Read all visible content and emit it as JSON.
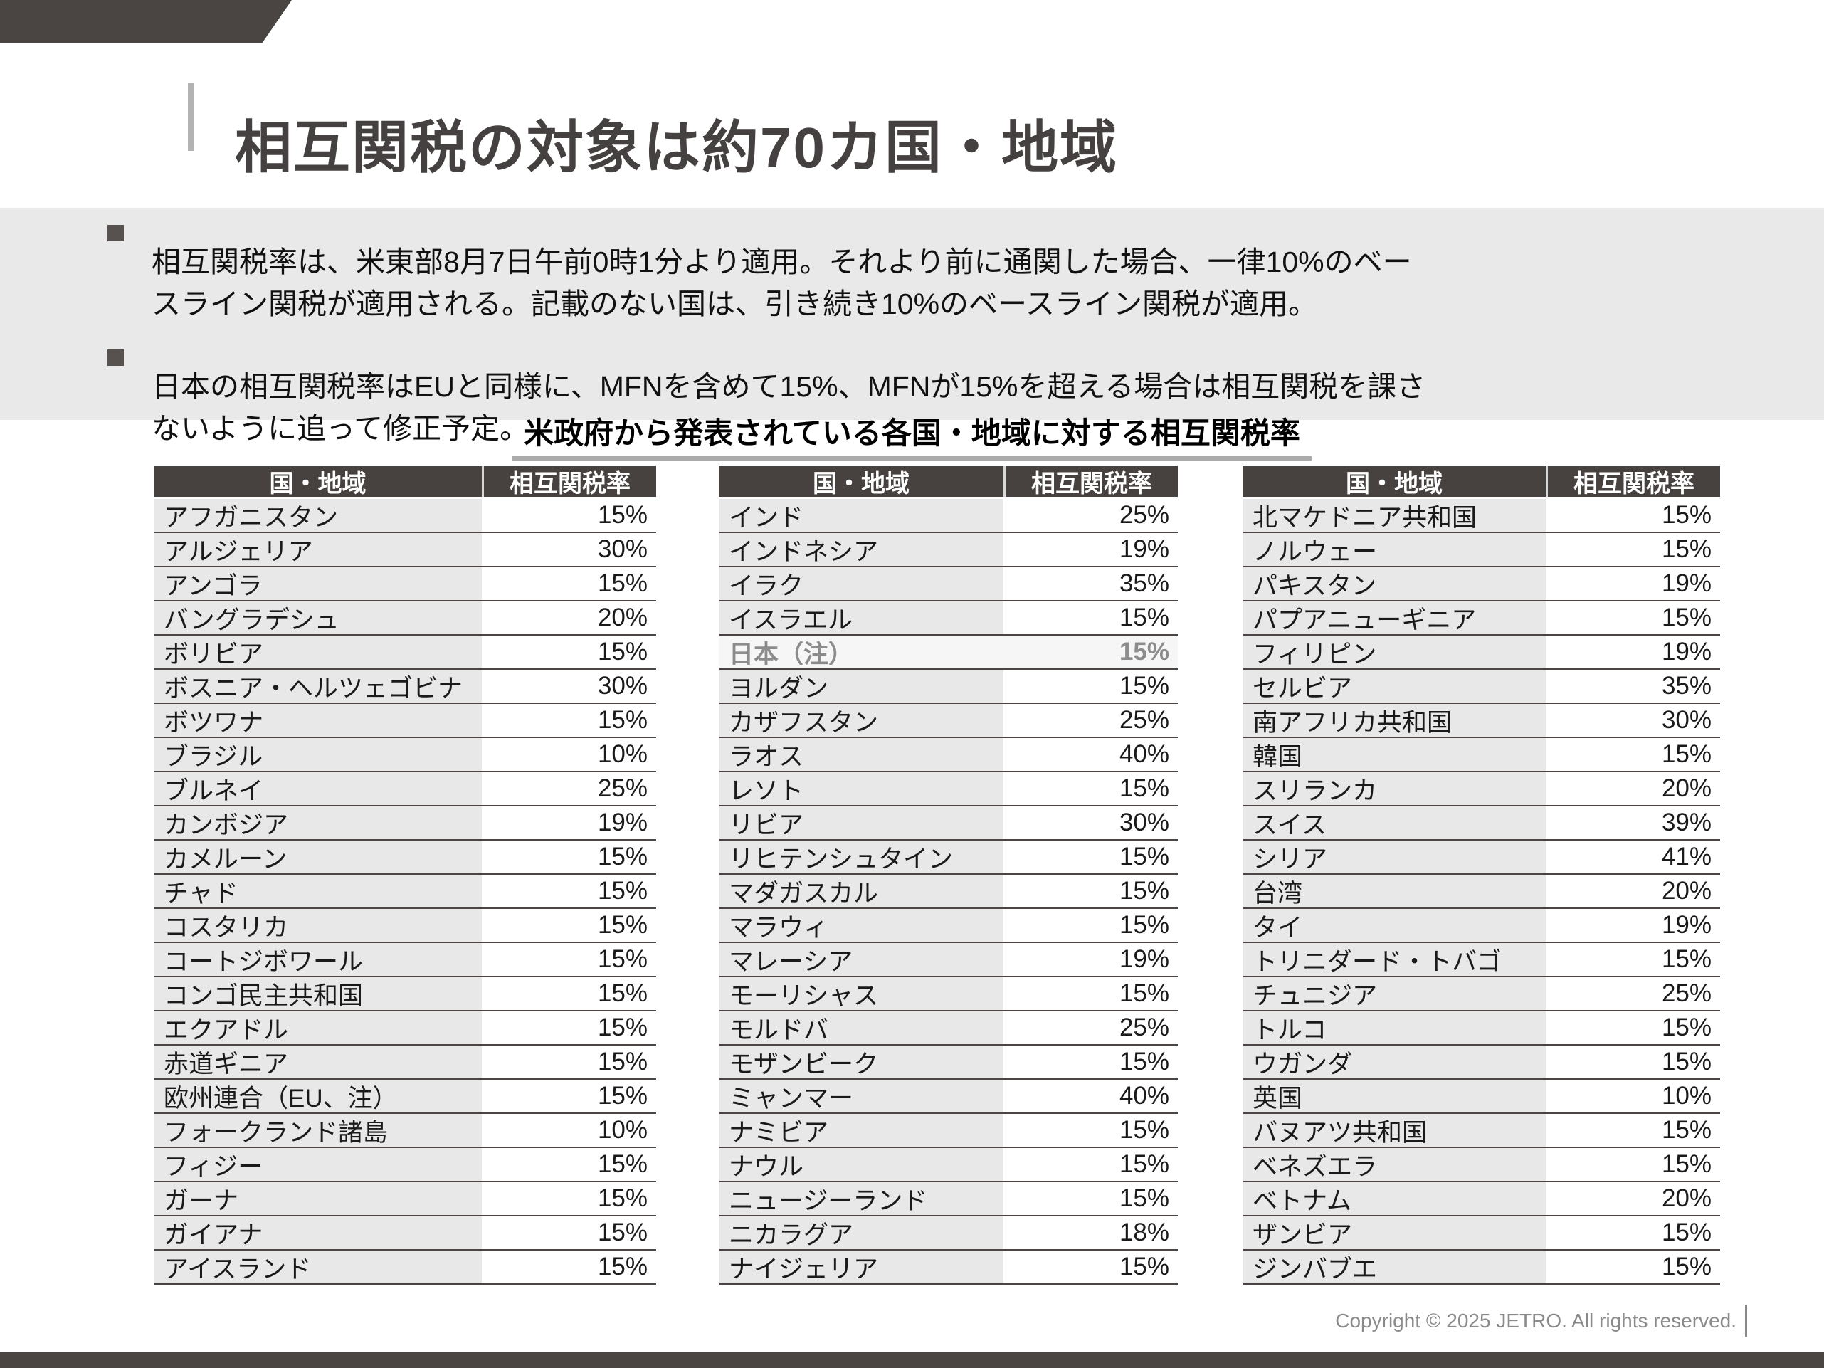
{
  "header": {
    "title": "相互関税の対象は約70カ国・地域"
  },
  "notes": {
    "bullets": [
      {
        "lines": [
          "相互関税率は、米東部8月7日午前0時1分より適用。それより前に通関した場合、一律10%のベー",
          "スライン関税が適用される。記載のない国は、引き続き10%のベースライン関税が適用。"
        ]
      },
      {
        "lines": [
          "日本の相互関税率はEUと同様に、MFNを含めて15%、MFNが15%を超える場合は相互関税を課さ",
          "ないように追って修正予定。"
        ]
      }
    ]
  },
  "table_section": {
    "title": "米政府から発表されている各国・地域に対する相互関税率",
    "column_headers": {
      "country": "国・地域",
      "rate": "相互関税率"
    },
    "tables": [
      {
        "rows": [
          {
            "country": "アフガニスタン",
            "rate": "15%"
          },
          {
            "country": "アルジェリア",
            "rate": "30%"
          },
          {
            "country": "アンゴラ",
            "rate": "15%"
          },
          {
            "country": "バングラデシュ",
            "rate": "20%"
          },
          {
            "country": "ボリビア",
            "rate": "15%"
          },
          {
            "country": "ボスニア・ヘルツェゴビナ",
            "rate": "30%"
          },
          {
            "country": "ボツワナ",
            "rate": "15%"
          },
          {
            "country": "ブラジル",
            "rate": "10%"
          },
          {
            "country": "ブルネイ",
            "rate": "25%"
          },
          {
            "country": "カンボジア",
            "rate": "19%"
          },
          {
            "country": "カメルーン",
            "rate": "15%"
          },
          {
            "country": "チャド",
            "rate": "15%"
          },
          {
            "country": "コスタリカ",
            "rate": "15%"
          },
          {
            "country": "コートジボワール",
            "rate": "15%"
          },
          {
            "country": "コンゴ民主共和国",
            "rate": "15%"
          },
          {
            "country": "エクアドル",
            "rate": "15%"
          },
          {
            "country": "赤道ギニア",
            "rate": "15%"
          },
          {
            "country": "欧州連合（EU、注）",
            "rate": "15%"
          },
          {
            "country": "フォークランド諸島",
            "rate": "10%"
          },
          {
            "country": "フィジー",
            "rate": "15%"
          },
          {
            "country": "ガーナ",
            "rate": "15%"
          },
          {
            "country": "ガイアナ",
            "rate": "15%"
          },
          {
            "country": "アイスランド",
            "rate": "15%"
          }
        ]
      },
      {
        "rows": [
          {
            "country": "インド",
            "rate": "25%"
          },
          {
            "country": "インドネシア",
            "rate": "19%"
          },
          {
            "country": "イラク",
            "rate": "35%"
          },
          {
            "country": "イスラエル",
            "rate": "15%"
          },
          {
            "country": "日本（注）",
            "rate": "15%",
            "highlight": true
          },
          {
            "country": "ヨルダン",
            "rate": "15%"
          },
          {
            "country": "カザフスタン",
            "rate": "25%"
          },
          {
            "country": "ラオス",
            "rate": "40%"
          },
          {
            "country": "レソト",
            "rate": "15%"
          },
          {
            "country": "リビア",
            "rate": "30%"
          },
          {
            "country": "リヒテンシュタイン",
            "rate": "15%"
          },
          {
            "country": "マダガスカル",
            "rate": "15%"
          },
          {
            "country": "マラウィ",
            "rate": "15%"
          },
          {
            "country": "マレーシア",
            "rate": "19%"
          },
          {
            "country": "モーリシャス",
            "rate": "15%"
          },
          {
            "country": "モルドバ",
            "rate": "25%"
          },
          {
            "country": "モザンビーク",
            "rate": "15%"
          },
          {
            "country": "ミャンマー",
            "rate": "40%"
          },
          {
            "country": "ナミビア",
            "rate": "15%"
          },
          {
            "country": "ナウル",
            "rate": "15%"
          },
          {
            "country": "ニュージーランド",
            "rate": "15%"
          },
          {
            "country": "ニカラグア",
            "rate": "18%"
          },
          {
            "country": "ナイジェリア",
            "rate": "15%"
          }
        ]
      },
      {
        "rows": [
          {
            "country": "北マケドニア共和国",
            "rate": "15%"
          },
          {
            "country": "ノルウェー",
            "rate": "15%"
          },
          {
            "country": "パキスタン",
            "rate": "19%"
          },
          {
            "country": "パプアニューギニア",
            "rate": "15%"
          },
          {
            "country": "フィリピン",
            "rate": "19%"
          },
          {
            "country": "セルビア",
            "rate": "35%"
          },
          {
            "country": "南アフリカ共和国",
            "rate": "30%"
          },
          {
            "country": "韓国",
            "rate": "15%"
          },
          {
            "country": "スリランカ",
            "rate": "20%"
          },
          {
            "country": "スイス",
            "rate": "39%"
          },
          {
            "country": "シリア",
            "rate": "41%"
          },
          {
            "country": "台湾",
            "rate": "20%"
          },
          {
            "country": "タイ",
            "rate": "19%"
          },
          {
            "country": "トリニダード・トバゴ",
            "rate": "15%"
          },
          {
            "country": "チュニジア",
            "rate": "25%"
          },
          {
            "country": "トルコ",
            "rate": "15%"
          },
          {
            "country": "ウガンダ",
            "rate": "15%"
          },
          {
            "country": "英国",
            "rate": "10%"
          },
          {
            "country": "バヌアツ共和国",
            "rate": "15%"
          },
          {
            "country": "ベネズエラ",
            "rate": "15%"
          },
          {
            "country": "ベトナム",
            "rate": "20%"
          },
          {
            "country": "ザンビア",
            "rate": "15%"
          },
          {
            "country": "ジンバブエ",
            "rate": "15%"
          }
        ]
      }
    ]
  },
  "footer": {
    "copyright": "Copyright © 2025 JETRO. All rights reserved."
  },
  "colors": {
    "brand_dark": "#4a4543",
    "note_box_bg": "#e9e9e9",
    "row_country_bg": "#e8e8e8",
    "row_border": "#4a4543",
    "highlight_bg": "#f6f6f6",
    "highlight_text": "#8c8c8c",
    "header_text": "#ffffff",
    "footer_text": "#8a8a8a",
    "title_underline": "#ababab"
  }
}
